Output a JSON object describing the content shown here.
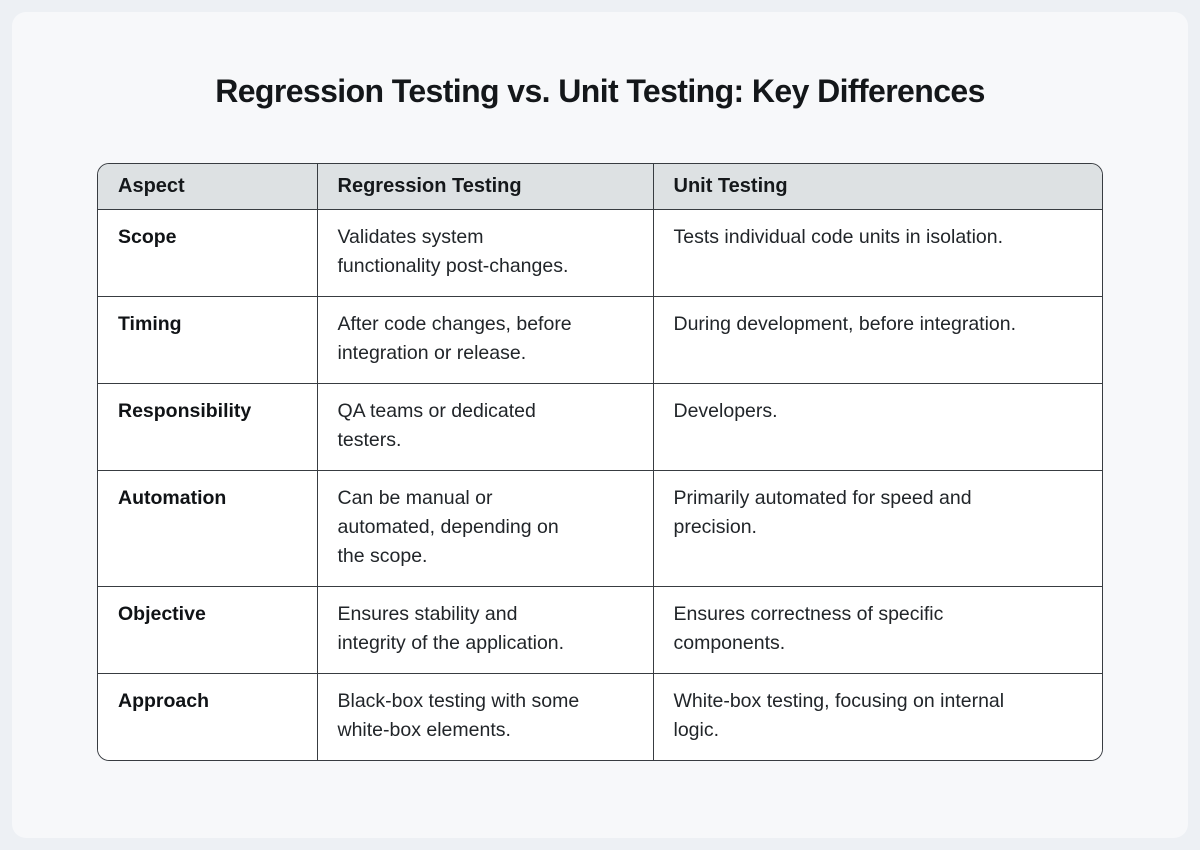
{
  "page": {
    "title": "Regression Testing vs. Unit Testing: Key Differences"
  },
  "table": {
    "columns": [
      "Aspect",
      "Regression Testing",
      "Unit Testing"
    ],
    "rows": [
      {
        "aspect": "Scope",
        "regression": "Validates system\nfunctionality post-changes.",
        "unit": "Tests individual code units in isolation."
      },
      {
        "aspect": "Timing",
        "regression": "After code changes, before\nintegration or release.",
        "unit": "During development, before integration."
      },
      {
        "aspect": "Responsibility",
        "regression": "QA teams or dedicated\ntesters.",
        "unit": "Developers."
      },
      {
        "aspect": "Automation",
        "regression": "Can be manual or\nautomated, depending on\nthe scope.",
        "unit": "Primarily automated for speed and\nprecision."
      },
      {
        "aspect": "Objective",
        "regression": "Ensures stability and\nintegrity of the application.",
        "unit": "Ensures correctness of specific\ncomponents."
      },
      {
        "aspect": "Approach",
        "regression": "Black-box testing with some\nwhite-box elements.",
        "unit": "White-box testing, focusing on internal\nlogic."
      }
    ]
  },
  "colors": {
    "page_background": "#edf0f4",
    "card_background": "#f7f8fa",
    "header_background": "#dde1e3",
    "table_border": "#383c41",
    "title_text": "#14171a",
    "body_text": "#212529"
  }
}
